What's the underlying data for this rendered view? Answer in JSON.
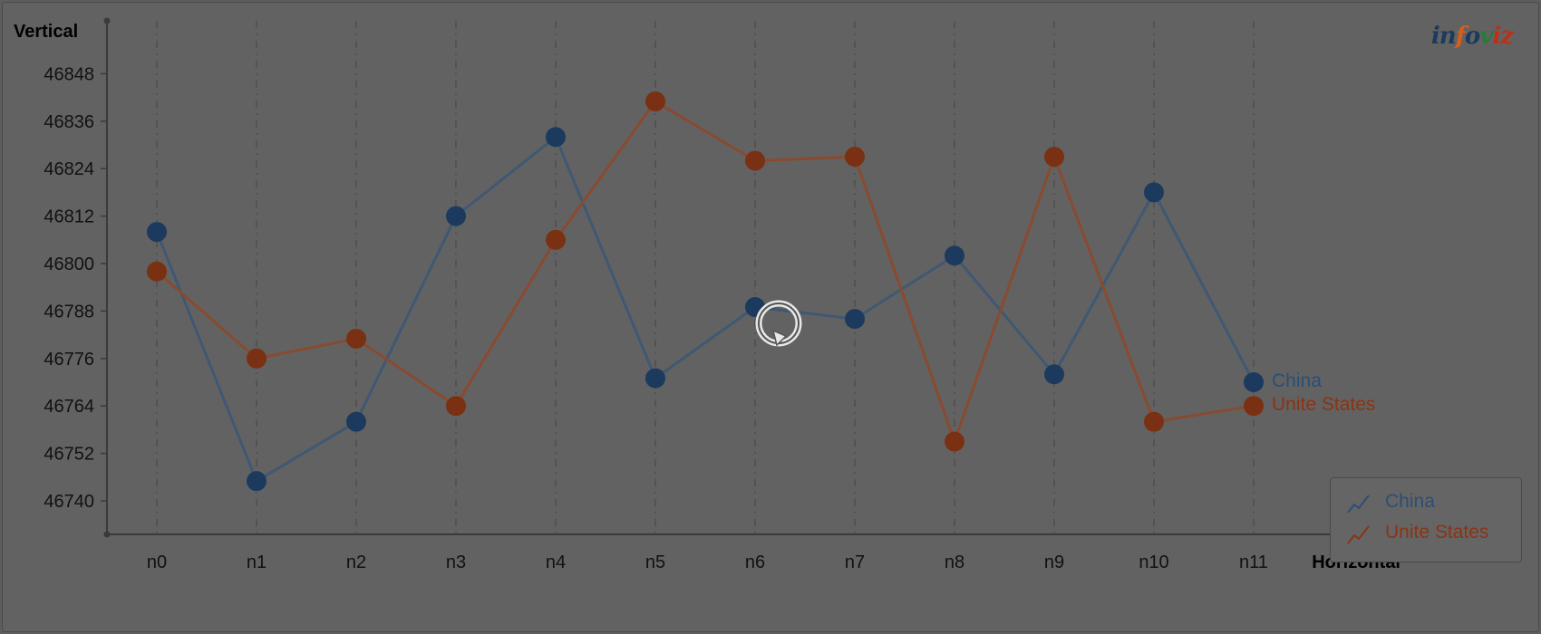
{
  "logo": "infoviz",
  "colors": {
    "china": "#1c3a5e",
    "usa": "#7a3012",
    "china_line": "#3f5873",
    "usa_line": "#8a4a30"
  },
  "loading_icon": "reload-icon",
  "chart_data": {
    "type": "line",
    "xlabel": "Horizontal",
    "ylabel": "Vertical",
    "categories": [
      "n0",
      "n1",
      "n2",
      "n3",
      "n4",
      "n5",
      "n6",
      "n7",
      "n8",
      "n9",
      "n10",
      "n11"
    ],
    "ylim": [
      46732,
      46856
    ],
    "yticks": [
      46740,
      46752,
      46764,
      46776,
      46788,
      46800,
      46812,
      46824,
      46836,
      46848
    ],
    "grid": "vertical dashed",
    "legend_placement": "bottom-right",
    "series": [
      {
        "name": "China",
        "values": [
          46808,
          46745,
          46760,
          46812,
          46832,
          46771,
          46789,
          46786,
          46802,
          46772,
          46818,
          46770
        ]
      },
      {
        "name": "Unite States",
        "values": [
          46798,
          46776,
          46781,
          46764,
          46806,
          46841,
          46826,
          46827,
          46755,
          46827,
          46760,
          46764
        ]
      }
    ]
  }
}
